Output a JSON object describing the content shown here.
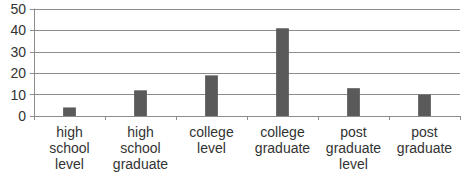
{
  "chart_data": {
    "type": "bar",
    "categories": [
      "high school level",
      "high school graduate",
      "college level",
      "college graduate",
      "post graduate level",
      "post graduate"
    ],
    "values": [
      4,
      12,
      19,
      41,
      13,
      10
    ],
    "color": "#5a5a5a",
    "ylim": [
      0,
      50
    ],
    "yticks": [
      0,
      10,
      20,
      30,
      40,
      50
    ],
    "grid": true
  }
}
